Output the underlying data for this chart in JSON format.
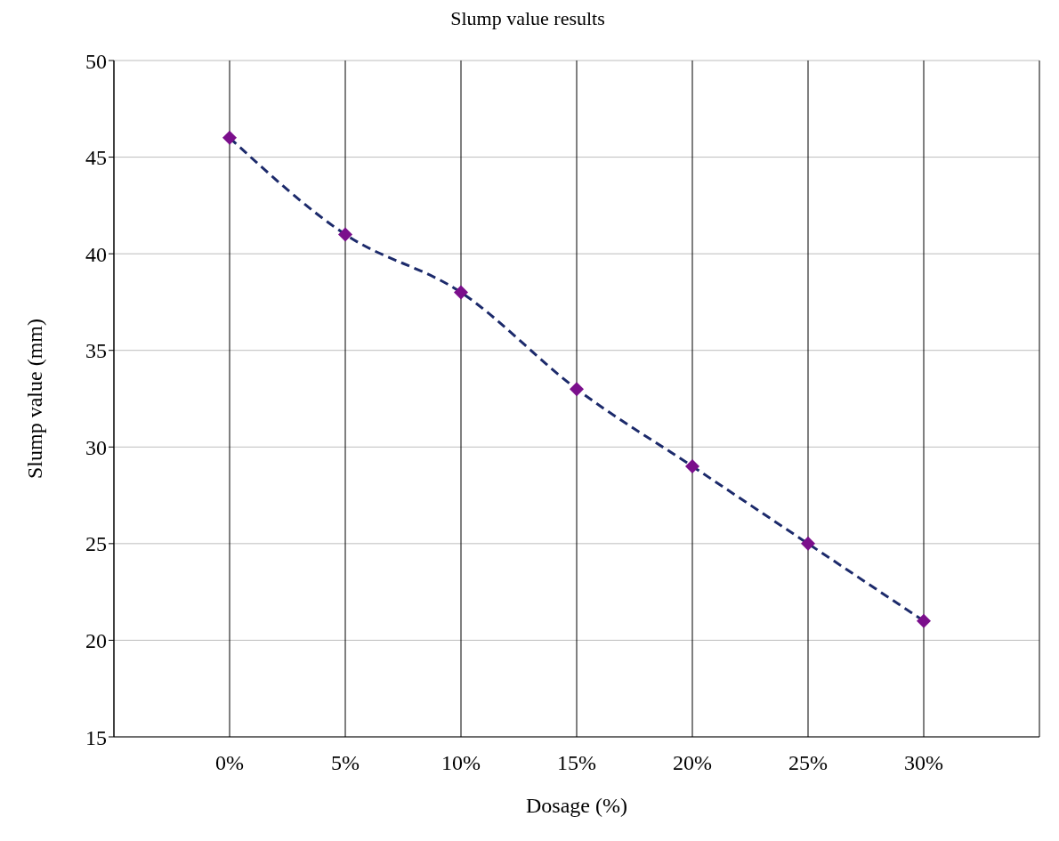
{
  "chart_data": {
    "type": "line",
    "title": "Slump value results",
    "xlabel": "Dosage (%)",
    "ylabel": "Slump value (mm)",
    "categories": [
      "0%",
      "5%",
      "10%",
      "15%",
      "20%",
      "25%",
      "30%"
    ],
    "series": [
      {
        "color": "#1c2a6b",
        "colors": [
          "#7b0f8c",
          "#7b0f8c",
          "#7b0f8c",
          "#7b0f8c",
          "#7b0f8c",
          "#7b0f8c",
          "#7b0f8c"
        ],
        "values": [
          46,
          41,
          38,
          33,
          29,
          25,
          21
        ]
      }
    ],
    "ylim": [
      15,
      50
    ],
    "yticks": [
      15,
      20,
      25,
      30,
      35,
      40,
      45,
      50
    ],
    "grid": true,
    "legend": false,
    "marker": "diamond",
    "line_style": "dashed"
  }
}
